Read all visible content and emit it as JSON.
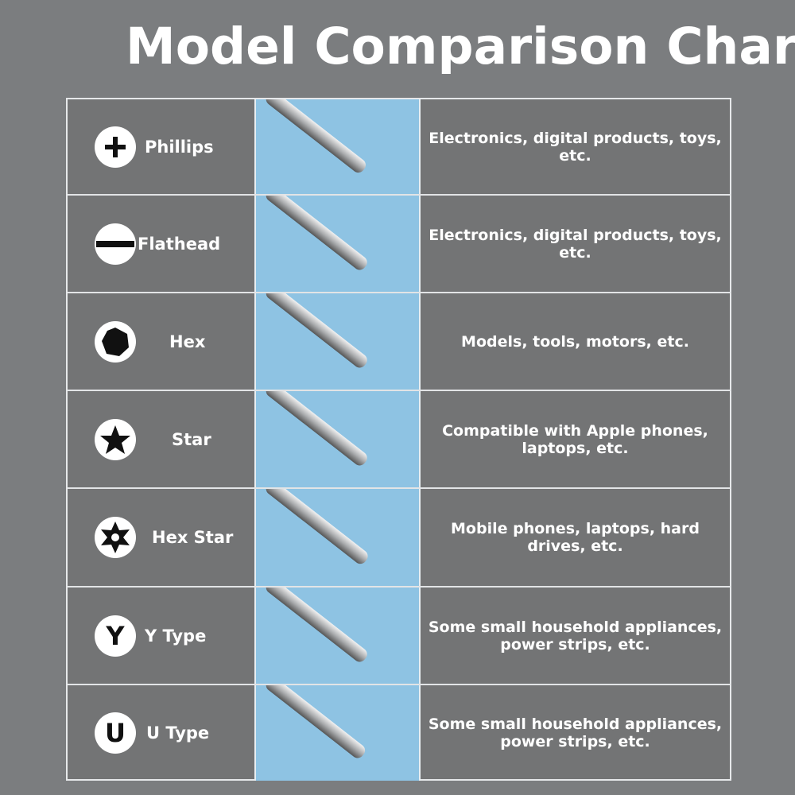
{
  "title": "Model Comparison Chart",
  "colors": {
    "background": "#7b7d7f",
    "cell": "#737475",
    "image_column": "#8ec3e3",
    "text": "#ffffff"
  },
  "rows": [
    {
      "name": "Phillips",
      "icon": "plus-icon",
      "use": "Electronics, digital products, toys, etc."
    },
    {
      "name": "Flathead",
      "icon": "minus-icon",
      "use": "Electronics, digital products, toys, etc."
    },
    {
      "name": "Hex",
      "icon": "hexagon-icon",
      "use": "Models, tools, motors, etc."
    },
    {
      "name": "Star",
      "icon": "star-icon",
      "use": "Compatible with Apple phones, laptops, etc."
    },
    {
      "name": "Hex Star",
      "icon": "hex-star-icon",
      "use": "Mobile phones, laptops, hard drives, etc."
    },
    {
      "name": "Y Type",
      "icon": "y-letter-icon",
      "icon_text": "Y",
      "use": "Some small household appliances, power strips, etc."
    },
    {
      "name": "U Type",
      "icon": "u-letter-icon",
      "icon_text": "U",
      "use": "Some small household appliances, power strips, etc."
    }
  ]
}
